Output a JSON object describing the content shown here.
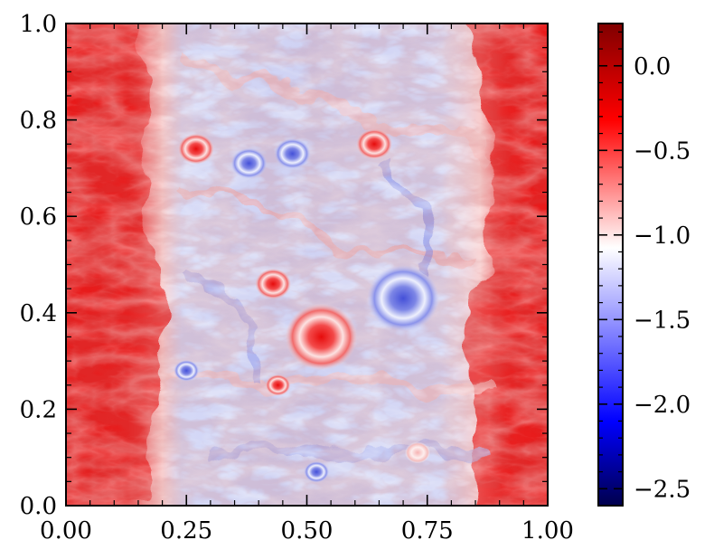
{
  "chart_data": {
    "type": "heatmap",
    "title": "",
    "xlabel": "",
    "ylabel": "",
    "xlim": [
      0.0,
      1.0
    ],
    "ylim": [
      0.0,
      1.0
    ],
    "x_ticks": [
      "0.00",
      "0.25",
      "0.50",
      "0.75",
      "1.00"
    ],
    "y_ticks": [
      "0.0",
      "0.2",
      "0.4",
      "0.6",
      "0.8",
      "1.0"
    ],
    "grid": false,
    "colormap": "seismic",
    "colorbar": {
      "range": [
        -2.6,
        0.25
      ],
      "ticks": [
        "0.0",
        "−0.5",
        "−1.0",
        "−1.5",
        "−2.0",
        "−2.5"
      ],
      "tick_values": [
        0.0,
        -0.5,
        -1.0,
        -1.5,
        -2.0,
        -2.5
      ],
      "colors": [
        "#00004c",
        "#0000ff",
        "#ffffff",
        "#ff0000",
        "#800000"
      ]
    },
    "field_description_colors": {
      "outer_bands": "#ee1f1f",
      "center_region": "#c9cdf6",
      "white_transition": "#ffffff"
    },
    "features": [
      {
        "kind": "vortex",
        "x": 0.53,
        "y": 0.35,
        "sign": "positive",
        "value": 0.0
      },
      {
        "kind": "vortex",
        "x": 0.7,
        "y": 0.43,
        "sign": "negative",
        "value": -1.6
      },
      {
        "kind": "vortex",
        "x": 0.43,
        "y": 0.46,
        "sign": "positive",
        "value": -0.2
      },
      {
        "kind": "vortex",
        "x": 0.64,
        "y": 0.75,
        "sign": "positive",
        "value": -0.5
      },
      {
        "kind": "vortex",
        "x": 0.47,
        "y": 0.73,
        "sign": "negative",
        "value": -1.5
      },
      {
        "kind": "vortex",
        "x": 0.38,
        "y": 0.71,
        "sign": "negative",
        "value": -1.5
      },
      {
        "kind": "vortex",
        "x": 0.27,
        "y": 0.74,
        "sign": "positive",
        "value": -0.6
      },
      {
        "kind": "vortex",
        "x": 0.44,
        "y": 0.25,
        "sign": "positive",
        "value": -0.2
      },
      {
        "kind": "vortex",
        "x": 0.25,
        "y": 0.28,
        "sign": "negative",
        "value": -2.0
      },
      {
        "kind": "vortex",
        "x": 0.73,
        "y": 0.11,
        "sign": "positive",
        "value": -0.9
      },
      {
        "kind": "vortex",
        "x": 0.52,
        "y": 0.07,
        "sign": "negative",
        "value": -1.4
      }
    ]
  }
}
